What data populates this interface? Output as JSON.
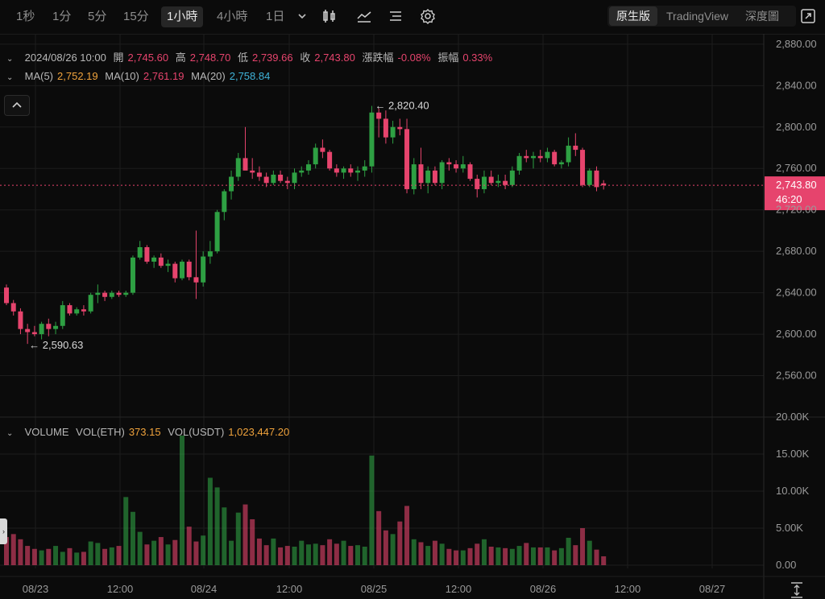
{
  "toolbar": {
    "timeframes": [
      "1秒",
      "1分",
      "5分",
      "15分",
      "1小時",
      "4小時",
      "1日"
    ],
    "active_timeframe": "1小時",
    "more_icon": "chevron-down-icon",
    "icons": [
      "candle-type-icon",
      "indicator-icon",
      "drawing-list-icon",
      "settings-icon"
    ],
    "views": [
      "原生版",
      "TradingView",
      "深度圖"
    ],
    "active_view": "原生版",
    "fullscreen_icon": "fullscreen-icon"
  },
  "ohlc": {
    "date": "2024/08/26 10:00",
    "open_label": "開",
    "open": "2,745.60",
    "high_label": "高",
    "high": "2,748.70",
    "low_label": "低",
    "low": "2,739.66",
    "close_label": "收",
    "close": "2,743.80",
    "change_label": "漲跌幅",
    "change": "-0.08%",
    "amplitude_label": "振幅",
    "amplitude": "0.33%"
  },
  "ma": {
    "ma5_label": "MA(5)",
    "ma5": "2,752.19",
    "ma10_label": "MA(10)",
    "ma10": "2,761.19",
    "ma20_label": "MA(20)",
    "ma20": "2,758.84"
  },
  "volume_legend": {
    "title": "VOLUME",
    "vol_eth_label": "VOL(ETH)",
    "vol_eth": "373.15",
    "vol_usdt_label": "VOL(USDT)",
    "vol_usdt": "1,023,447.20"
  },
  "colors": {
    "up": "#2ea043",
    "down": "#e6446d",
    "background": "#0b0b0b",
    "grid": "#1d1d1d"
  },
  "chart_data": {
    "type": "candlestick",
    "price_axis": {
      "ticks": [
        2560,
        2600,
        2640,
        2680,
        2720,
        2760,
        2800,
        2840,
        2880
      ],
      "ylim": [
        2520,
        2890
      ],
      "tick_labels": [
        "2,560.00",
        "2,600.00",
        "2,640.00",
        "2,680.00",
        "2,720.00",
        "2,760.00",
        "2,800.00",
        "2,840.00",
        "2,880.00"
      ]
    },
    "volume_axis": {
      "ticks": [
        0,
        5000,
        10000,
        15000,
        20000
      ],
      "ylim": [
        0,
        20000
      ],
      "tick_labels": [
        "0.00",
        "5.00K",
        "10.00K",
        "15.00K",
        "20.00K"
      ]
    },
    "x_labels": [
      "08/23",
      "12:00",
      "08/24",
      "12:00",
      "08/25",
      "12:00",
      "08/26",
      "12:00",
      "08/27"
    ],
    "last_price": {
      "value": 2743.8,
      "label": "2,743.80",
      "countdown": "46:20"
    },
    "high_marker": {
      "label": "← 2,820.40",
      "value": 2820.4
    },
    "low_marker": {
      "label": "← 2,590.63",
      "value": 2590.63
    },
    "candles": [
      [
        2645,
        2648,
        2628,
        2630
      ],
      [
        2630,
        2633,
        2618,
        2622
      ],
      [
        2622,
        2625,
        2600,
        2605
      ],
      [
        2605,
        2610,
        2590.63,
        2602
      ],
      [
        2602,
        2608,
        2598,
        2600
      ],
      [
        2600,
        2612,
        2595,
        2610
      ],
      [
        2610,
        2615,
        2598,
        2605
      ],
      [
        2605,
        2612,
        2600,
        2608
      ],
      [
        2608,
        2632,
        2605,
        2628
      ],
      [
        2628,
        2630,
        2618,
        2620
      ],
      [
        2620,
        2626,
        2618,
        2624
      ],
      [
        2624,
        2628,
        2618,
        2622
      ],
      [
        2622,
        2640,
        2620,
        2638
      ],
      [
        2638,
        2648,
        2630,
        2640
      ],
      [
        2640,
        2642,
        2632,
        2636
      ],
      [
        2636,
        2642,
        2634,
        2640
      ],
      [
        2640,
        2642,
        2636,
        2638
      ],
      [
        2638,
        2642,
        2636,
        2640
      ],
      [
        2640,
        2676,
        2638,
        2674
      ],
      [
        2674,
        2690,
        2672,
        2684
      ],
      [
        2684,
        2686,
        2668,
        2670
      ],
      [
        2670,
        2676,
        2664,
        2674
      ],
      [
        2674,
        2678,
        2664,
        2666
      ],
      [
        2666,
        2672,
        2660,
        2668
      ],
      [
        2668,
        2670,
        2650,
        2654
      ],
      [
        2654,
        2672,
        2652,
        2670
      ],
      [
        2670,
        2672,
        2652,
        2655
      ],
      [
        2655,
        2700,
        2634,
        2650
      ],
      [
        2650,
        2680,
        2646,
        2675
      ],
      [
        2675,
        2690,
        2668,
        2680
      ],
      [
        2680,
        2720,
        2678,
        2718
      ],
      [
        2718,
        2740,
        2710,
        2738
      ],
      [
        2738,
        2758,
        2730,
        2752
      ],
      [
        2752,
        2775,
        2748,
        2770
      ],
      [
        2770,
        2800,
        2760,
        2758
      ],
      [
        2758,
        2770,
        2750,
        2756
      ],
      [
        2756,
        2762,
        2748,
        2752
      ],
      [
        2752,
        2756,
        2742,
        2746
      ],
      [
        2746,
        2758,
        2744,
        2754
      ],
      [
        2754,
        2758,
        2746,
        2748
      ],
      [
        2748,
        2752,
        2740,
        2746
      ],
      [
        2746,
        2760,
        2740,
        2756
      ],
      [
        2756,
        2762,
        2752,
        2758
      ],
      [
        2758,
        2768,
        2754,
        2764
      ],
      [
        2764,
        2784,
        2760,
        2780
      ],
      [
        2780,
        2788,
        2770,
        2776
      ],
      [
        2776,
        2778,
        2758,
        2760
      ],
      [
        2760,
        2764,
        2752,
        2756
      ],
      [
        2756,
        2762,
        2750,
        2760
      ],
      [
        2760,
        2764,
        2752,
        2756
      ],
      [
        2756,
        2762,
        2748,
        2758
      ],
      [
        2758,
        2768,
        2752,
        2762
      ],
      [
        2762,
        2820.4,
        2756,
        2814
      ],
      [
        2814,
        2818,
        2790,
        2808
      ],
      [
        2808,
        2816,
        2784,
        2790
      ],
      [
        2790,
        2806,
        2784,
        2800
      ],
      [
        2800,
        2808,
        2792,
        2798
      ],
      [
        2798,
        2808,
        2736,
        2740
      ],
      [
        2740,
        2770,
        2735,
        2764
      ],
      [
        2764,
        2780,
        2740,
        2746
      ],
      [
        2746,
        2762,
        2736,
        2758
      ],
      [
        2758,
        2762,
        2744,
        2746
      ],
      [
        2746,
        2768,
        2740,
        2766
      ],
      [
        2766,
        2770,
        2758,
        2764
      ],
      [
        2764,
        2768,
        2756,
        2760
      ],
      [
        2760,
        2772,
        2756,
        2764
      ],
      [
        2764,
        2766,
        2748,
        2750
      ],
      [
        2750,
        2754,
        2732,
        2740
      ],
      [
        2740,
        2758,
        2736,
        2752
      ],
      [
        2752,
        2758,
        2744,
        2746
      ],
      [
        2746,
        2754,
        2742,
        2748
      ],
      [
        2748,
        2754,
        2740,
        2744
      ],
      [
        2744,
        2762,
        2742,
        2758
      ],
      [
        2758,
        2775,
        2754,
        2772
      ],
      [
        2772,
        2778,
        2766,
        2770
      ],
      [
        2770,
        2776,
        2760,
        2772
      ],
      [
        2772,
        2778,
        2766,
        2770
      ],
      [
        2770,
        2780,
        2766,
        2776
      ],
      [
        2776,
        2778,
        2762,
        2764
      ],
      [
        2764,
        2768,
        2760,
        2766
      ],
      [
        2766,
        2790,
        2762,
        2782
      ],
      [
        2782,
        2794,
        2772,
        2778
      ],
      [
        2778,
        2780,
        2742,
        2744
      ],
      [
        2744,
        2760,
        2742,
        2758
      ],
      [
        2758,
        2762,
        2738,
        2742
      ],
      [
        2745.6,
        2748.7,
        2739.66,
        2743.8
      ]
    ],
    "volumes": [
      3800,
      4200,
      3500,
      2600,
      2200,
      2000,
      2200,
      2600,
      1800,
      2300,
      1700,
      1800,
      3200,
      3000,
      2200,
      2400,
      2600,
      9200,
      7200,
      4500,
      2800,
      3300,
      3800,
      2800,
      3400,
      17500,
      5200,
      3200,
      4000,
      11800,
      10500,
      7800,
      3300,
      7100,
      8200,
      6200,
      3600,
      2700,
      3600,
      2400,
      2600,
      2500,
      3300,
      2800,
      2900,
      2700,
      3500,
      2900,
      3300,
      2600,
      2700,
      2500,
      14800,
      7300,
      4700,
      4200,
      5900,
      8000,
      3500,
      3100,
      2600,
      3300,
      2900,
      2200,
      2000,
      2000,
      2300,
      2900,
      3500,
      2500,
      2400,
      2300,
      2200,
      2600,
      3000,
      2400,
      2400,
      2400,
      2000,
      2300,
      3700,
      2700,
      5000,
      3300,
      2100,
      1200
    ]
  }
}
